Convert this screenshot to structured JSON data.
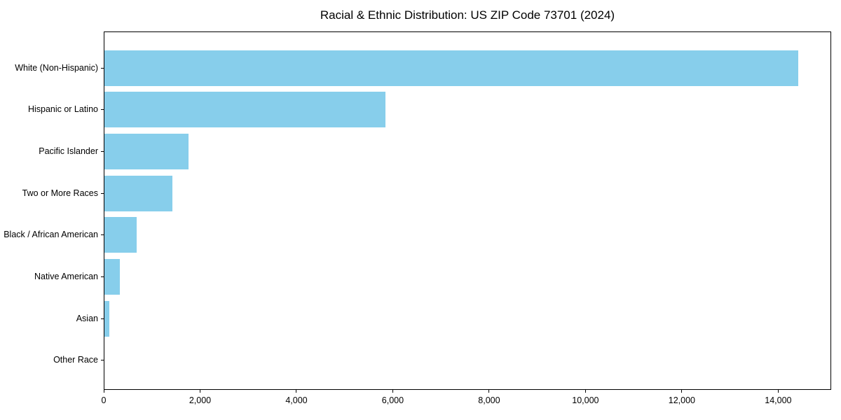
{
  "chart_data": {
    "type": "bar",
    "orientation": "horizontal",
    "title": "Racial & Ethnic Distribution: US ZIP Code 73701 (2024)",
    "categories": [
      "White (Non-Hispanic)",
      "Hispanic or Latino",
      "Pacific Islander",
      "Two or More Races",
      "Black / African American",
      "Native American",
      "Asian",
      "Other Race"
    ],
    "values": [
      14400,
      5840,
      1750,
      1410,
      670,
      320,
      100,
      0
    ],
    "xlabel": "",
    "ylabel": "",
    "xlim": [
      0,
      15100
    ],
    "xticks": [
      0,
      2000,
      4000,
      6000,
      8000,
      10000,
      12000,
      14000
    ],
    "xtick_labels": [
      "0",
      "2,000",
      "4,000",
      "6,000",
      "8,000",
      "10,000",
      "12,000",
      "14,000"
    ],
    "bar_color": "#87CEEB",
    "axis_color": "#000000",
    "grid": false,
    "legend": null
  }
}
